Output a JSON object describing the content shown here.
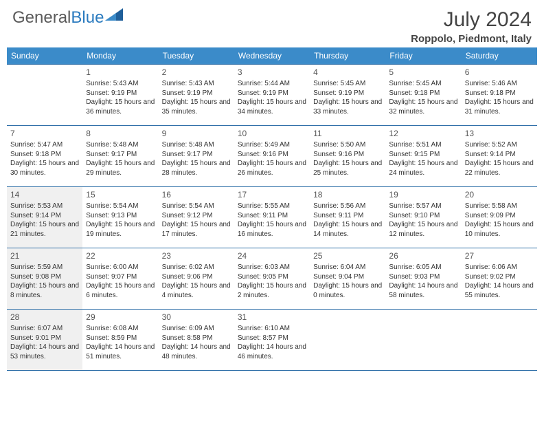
{
  "brand": {
    "name_a": "General",
    "name_b": "Blue"
  },
  "title": {
    "month": "July 2024",
    "location": "Roppolo, Piedmont, Italy"
  },
  "colors": {
    "header_bg": "#3b8bc9",
    "header_text": "#ffffff",
    "border": "#2f6fa8",
    "shade": "#f0f0f0",
    "brand_gray": "#5a5a5a",
    "brand_blue": "#2b7bbf",
    "triangle": "#1f5f9a"
  },
  "typography": {
    "month_fontsize": 30,
    "location_fontsize": 15,
    "dayheader_fontsize": 12,
    "daynum_fontsize": 12,
    "cell_fontsize": 10
  },
  "day_names": [
    "Sunday",
    "Monday",
    "Tuesday",
    "Wednesday",
    "Thursday",
    "Friday",
    "Saturday"
  ],
  "weeks": [
    [
      {
        "num": "",
        "sunrise": "",
        "sunset": "",
        "daylight": "",
        "shade": false
      },
      {
        "num": "1",
        "sunrise": "Sunrise: 5:43 AM",
        "sunset": "Sunset: 9:19 PM",
        "daylight": "Daylight: 15 hours and 36 minutes.",
        "shade": false
      },
      {
        "num": "2",
        "sunrise": "Sunrise: 5:43 AM",
        "sunset": "Sunset: 9:19 PM",
        "daylight": "Daylight: 15 hours and 35 minutes.",
        "shade": false
      },
      {
        "num": "3",
        "sunrise": "Sunrise: 5:44 AM",
        "sunset": "Sunset: 9:19 PM",
        "daylight": "Daylight: 15 hours and 34 minutes.",
        "shade": false
      },
      {
        "num": "4",
        "sunrise": "Sunrise: 5:45 AM",
        "sunset": "Sunset: 9:19 PM",
        "daylight": "Daylight: 15 hours and 33 minutes.",
        "shade": false
      },
      {
        "num": "5",
        "sunrise": "Sunrise: 5:45 AM",
        "sunset": "Sunset: 9:18 PM",
        "daylight": "Daylight: 15 hours and 32 minutes.",
        "shade": false
      },
      {
        "num": "6",
        "sunrise": "Sunrise: 5:46 AM",
        "sunset": "Sunset: 9:18 PM",
        "daylight": "Daylight: 15 hours and 31 minutes.",
        "shade": false
      }
    ],
    [
      {
        "num": "7",
        "sunrise": "Sunrise: 5:47 AM",
        "sunset": "Sunset: 9:18 PM",
        "daylight": "Daylight: 15 hours and 30 minutes.",
        "shade": false
      },
      {
        "num": "8",
        "sunrise": "Sunrise: 5:48 AM",
        "sunset": "Sunset: 9:17 PM",
        "daylight": "Daylight: 15 hours and 29 minutes.",
        "shade": false
      },
      {
        "num": "9",
        "sunrise": "Sunrise: 5:48 AM",
        "sunset": "Sunset: 9:17 PM",
        "daylight": "Daylight: 15 hours and 28 minutes.",
        "shade": false
      },
      {
        "num": "10",
        "sunrise": "Sunrise: 5:49 AM",
        "sunset": "Sunset: 9:16 PM",
        "daylight": "Daylight: 15 hours and 26 minutes.",
        "shade": false
      },
      {
        "num": "11",
        "sunrise": "Sunrise: 5:50 AM",
        "sunset": "Sunset: 9:16 PM",
        "daylight": "Daylight: 15 hours and 25 minutes.",
        "shade": false
      },
      {
        "num": "12",
        "sunrise": "Sunrise: 5:51 AM",
        "sunset": "Sunset: 9:15 PM",
        "daylight": "Daylight: 15 hours and 24 minutes.",
        "shade": false
      },
      {
        "num": "13",
        "sunrise": "Sunrise: 5:52 AM",
        "sunset": "Sunset: 9:14 PM",
        "daylight": "Daylight: 15 hours and 22 minutes.",
        "shade": false
      }
    ],
    [
      {
        "num": "14",
        "sunrise": "Sunrise: 5:53 AM",
        "sunset": "Sunset: 9:14 PM",
        "daylight": "Daylight: 15 hours and 21 minutes.",
        "shade": true
      },
      {
        "num": "15",
        "sunrise": "Sunrise: 5:54 AM",
        "sunset": "Sunset: 9:13 PM",
        "daylight": "Daylight: 15 hours and 19 minutes.",
        "shade": false
      },
      {
        "num": "16",
        "sunrise": "Sunrise: 5:54 AM",
        "sunset": "Sunset: 9:12 PM",
        "daylight": "Daylight: 15 hours and 17 minutes.",
        "shade": false
      },
      {
        "num": "17",
        "sunrise": "Sunrise: 5:55 AM",
        "sunset": "Sunset: 9:11 PM",
        "daylight": "Daylight: 15 hours and 16 minutes.",
        "shade": false
      },
      {
        "num": "18",
        "sunrise": "Sunrise: 5:56 AM",
        "sunset": "Sunset: 9:11 PM",
        "daylight": "Daylight: 15 hours and 14 minutes.",
        "shade": false
      },
      {
        "num": "19",
        "sunrise": "Sunrise: 5:57 AM",
        "sunset": "Sunset: 9:10 PM",
        "daylight": "Daylight: 15 hours and 12 minutes.",
        "shade": false
      },
      {
        "num": "20",
        "sunrise": "Sunrise: 5:58 AM",
        "sunset": "Sunset: 9:09 PM",
        "daylight": "Daylight: 15 hours and 10 minutes.",
        "shade": false
      }
    ],
    [
      {
        "num": "21",
        "sunrise": "Sunrise: 5:59 AM",
        "sunset": "Sunset: 9:08 PM",
        "daylight": "Daylight: 15 hours and 8 minutes.",
        "shade": true
      },
      {
        "num": "22",
        "sunrise": "Sunrise: 6:00 AM",
        "sunset": "Sunset: 9:07 PM",
        "daylight": "Daylight: 15 hours and 6 minutes.",
        "shade": false
      },
      {
        "num": "23",
        "sunrise": "Sunrise: 6:02 AM",
        "sunset": "Sunset: 9:06 PM",
        "daylight": "Daylight: 15 hours and 4 minutes.",
        "shade": false
      },
      {
        "num": "24",
        "sunrise": "Sunrise: 6:03 AM",
        "sunset": "Sunset: 9:05 PM",
        "daylight": "Daylight: 15 hours and 2 minutes.",
        "shade": false
      },
      {
        "num": "25",
        "sunrise": "Sunrise: 6:04 AM",
        "sunset": "Sunset: 9:04 PM",
        "daylight": "Daylight: 15 hours and 0 minutes.",
        "shade": false
      },
      {
        "num": "26",
        "sunrise": "Sunrise: 6:05 AM",
        "sunset": "Sunset: 9:03 PM",
        "daylight": "Daylight: 14 hours and 58 minutes.",
        "shade": false
      },
      {
        "num": "27",
        "sunrise": "Sunrise: 6:06 AM",
        "sunset": "Sunset: 9:02 PM",
        "daylight": "Daylight: 14 hours and 55 minutes.",
        "shade": false
      }
    ],
    [
      {
        "num": "28",
        "sunrise": "Sunrise: 6:07 AM",
        "sunset": "Sunset: 9:01 PM",
        "daylight": "Daylight: 14 hours and 53 minutes.",
        "shade": true
      },
      {
        "num": "29",
        "sunrise": "Sunrise: 6:08 AM",
        "sunset": "Sunset: 8:59 PM",
        "daylight": "Daylight: 14 hours and 51 minutes.",
        "shade": false
      },
      {
        "num": "30",
        "sunrise": "Sunrise: 6:09 AM",
        "sunset": "Sunset: 8:58 PM",
        "daylight": "Daylight: 14 hours and 48 minutes.",
        "shade": false
      },
      {
        "num": "31",
        "sunrise": "Sunrise: 6:10 AM",
        "sunset": "Sunset: 8:57 PM",
        "daylight": "Daylight: 14 hours and 46 minutes.",
        "shade": false
      },
      {
        "num": "",
        "sunrise": "",
        "sunset": "",
        "daylight": "",
        "shade": false
      },
      {
        "num": "",
        "sunrise": "",
        "sunset": "",
        "daylight": "",
        "shade": false
      },
      {
        "num": "",
        "sunrise": "",
        "sunset": "",
        "daylight": "",
        "shade": false
      }
    ]
  ]
}
